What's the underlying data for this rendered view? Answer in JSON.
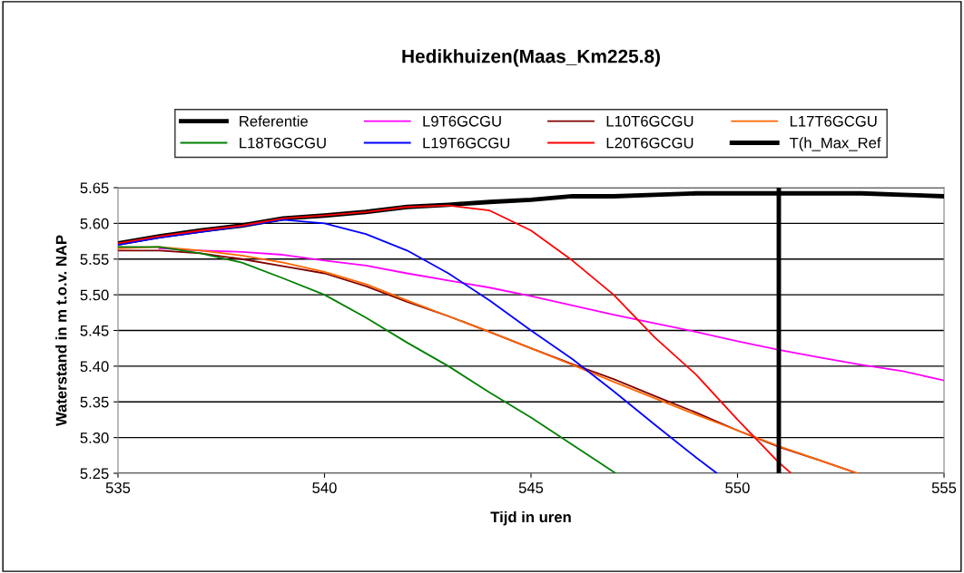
{
  "chart_data": {
    "type": "line",
    "title": "Hedikhuizen(Maas_Km225.8)",
    "xlabel": "Tijd in uren",
    "ylabel": "Waterstand in m t.o.v. NAP",
    "x": [
      535,
      536,
      537,
      538,
      539,
      540,
      541,
      542,
      543,
      544,
      545,
      546,
      547,
      548,
      549,
      550,
      551,
      552,
      553,
      554,
      555
    ],
    "series": [
      {
        "name": "Referentie",
        "color": "#000000",
        "values": [
          5.572,
          5.582,
          5.59,
          5.597,
          5.607,
          5.611,
          5.616,
          5.623,
          5.626,
          5.63,
          5.633,
          5.638,
          5.638,
          5.64,
          5.642,
          5.642,
          5.642,
          5.642,
          5.642,
          5.64,
          5.638
        ]
      },
      {
        "name": "L9T6GCGU",
        "color": "#ff00ff",
        "values": [
          null,
          5.565,
          5.562,
          5.56,
          5.556,
          5.548,
          5.541,
          5.53,
          5.52,
          5.51,
          5.498,
          5.485,
          5.472,
          5.46,
          5.448,
          5.435,
          5.423,
          5.412,
          5.402,
          5.393,
          5.38
        ]
      },
      {
        "name": "L10T6GCGU",
        "color": "#800000",
        "x": [
          535,
          536,
          537,
          538,
          539,
          540,
          541,
          542,
          543,
          544,
          545,
          546,
          547,
          548,
          549,
          550,
          551,
          552,
          552.9
        ],
        "values": [
          5.562,
          5.562,
          5.558,
          5.55,
          5.54,
          5.53,
          5.512,
          5.49,
          5.47,
          5.448,
          5.425,
          5.403,
          5.382,
          5.358,
          5.335,
          5.31,
          5.287,
          5.268,
          5.25
        ]
      },
      {
        "name": "L17T6GCGU",
        "color": "#ff6600",
        "x": [
          535,
          536,
          537,
          538,
          539,
          540,
          541,
          542,
          543,
          544,
          545,
          546,
          547,
          548,
          549,
          550,
          551,
          552,
          552.9
        ],
        "values": [
          5.565,
          5.567,
          5.562,
          5.555,
          5.545,
          5.532,
          5.515,
          5.492,
          5.47,
          5.448,
          5.425,
          5.402,
          5.378,
          5.355,
          5.332,
          5.31,
          5.288,
          5.268,
          5.25
        ]
      },
      {
        "name": "L18T6GCGU",
        "color": "#008000",
        "x": [
          535,
          536,
          537,
          538,
          539,
          540,
          541,
          542,
          543,
          544,
          545,
          546,
          547,
          547.05
        ],
        "values": [
          5.567,
          5.567,
          5.558,
          5.545,
          5.523,
          5.5,
          5.468,
          5.433,
          5.4,
          5.363,
          5.328,
          5.29,
          5.252,
          5.25
        ]
      },
      {
        "name": "L19T6GCGU",
        "color": "#0000ff",
        "x": [
          535,
          536,
          537,
          538,
          539,
          540,
          541,
          542,
          543,
          544,
          545,
          546,
          547,
          548,
          549,
          549.5
        ],
        "values": [
          5.57,
          5.58,
          5.588,
          5.596,
          5.605,
          5.6,
          5.585,
          5.562,
          5.53,
          5.492,
          5.45,
          5.41,
          5.365,
          5.318,
          5.272,
          5.25
        ]
      },
      {
        "name": "L20T6GCGU",
        "color": "#ff0000",
        "x": [
          535,
          536,
          537,
          538,
          539,
          540,
          541,
          542,
          543,
          544,
          545,
          546,
          547,
          548,
          549,
          550,
          551,
          551.3
        ],
        "values": [
          5.572,
          5.582,
          5.59,
          5.597,
          5.607,
          5.611,
          5.616,
          5.623,
          5.625,
          5.618,
          5.59,
          5.548,
          5.5,
          5.44,
          5.388,
          5.325,
          5.265,
          5.25
        ]
      },
      {
        "name": "T(h_Max_Ref",
        "color": "#000000",
        "x": [
          551,
          551
        ],
        "values": [
          5.25,
          5.65
        ]
      }
    ],
    "xlim": [
      535,
      555
    ],
    "xticks": [
      535,
      540,
      545,
      550,
      555
    ],
    "ylim": [
      5.25,
      5.65
    ],
    "yticks": [
      {
        "value": 5.25,
        "label": "5.25"
      },
      {
        "value": 5.3,
        "label": "5.30"
      },
      {
        "value": 5.35,
        "label": "5.35"
      },
      {
        "value": 5.4,
        "label": "5.40"
      },
      {
        "value": 5.45,
        "label": "5.45"
      },
      {
        "value": 5.5,
        "label": "5.50"
      },
      {
        "value": 5.55,
        "label": "5.55"
      },
      {
        "value": 5.6,
        "label": "5.60"
      },
      {
        "value": 5.65,
        "label": "5.65"
      }
    ],
    "grid": "y",
    "legend": "top",
    "marker": "none",
    "line_style": "solid"
  }
}
